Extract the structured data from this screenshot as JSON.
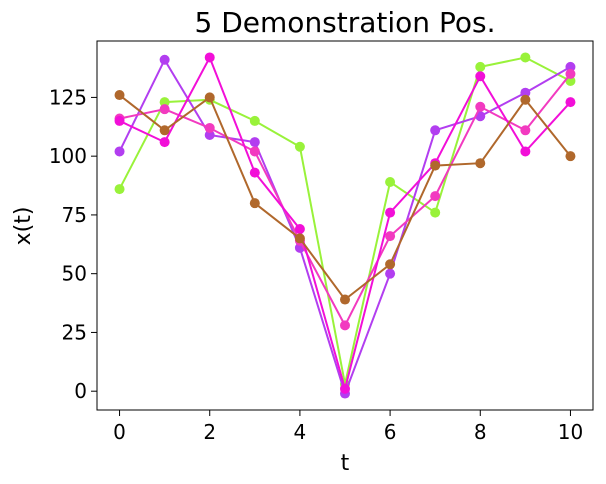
{
  "chart_data": {
    "type": "line",
    "title": "5 Demonstration Pos.",
    "xlabel": "t",
    "ylabel": "x(t)",
    "xlim": [
      -0.5,
      10.5
    ],
    "ylim": [
      -8,
      149
    ],
    "grid": false,
    "legend": "none",
    "xticks": [
      0,
      2,
      4,
      6,
      8,
      10
    ],
    "yticks": [
      0,
      25,
      50,
      75,
      100,
      125
    ],
    "x": [
      0,
      1,
      2,
      3,
      4,
      5,
      6,
      7,
      8,
      9,
      10
    ],
    "series": [
      {
        "color": "#99f23a",
        "values": [
          86,
          123,
          124,
          115,
          104,
          3,
          89,
          76,
          138,
          142,
          132
        ]
      },
      {
        "color": "#b23ef0",
        "values": [
          102,
          141,
          109,
          106,
          61,
          -1,
          50,
          111,
          117,
          127,
          138
        ]
      },
      {
        "color": "#f23ac0",
        "values": [
          116,
          120,
          112,
          102,
          64,
          28,
          66,
          83,
          121,
          111,
          135
        ]
      },
      {
        "color": "#f20fd8",
        "values": [
          115,
          106,
          142,
          93,
          69,
          1,
          76,
          97,
          134,
          102,
          123
        ]
      },
      {
        "color": "#b0682c",
        "values": [
          126,
          111,
          125,
          80,
          65,
          39,
          54,
          96,
          97,
          124,
          100
        ]
      }
    ]
  }
}
